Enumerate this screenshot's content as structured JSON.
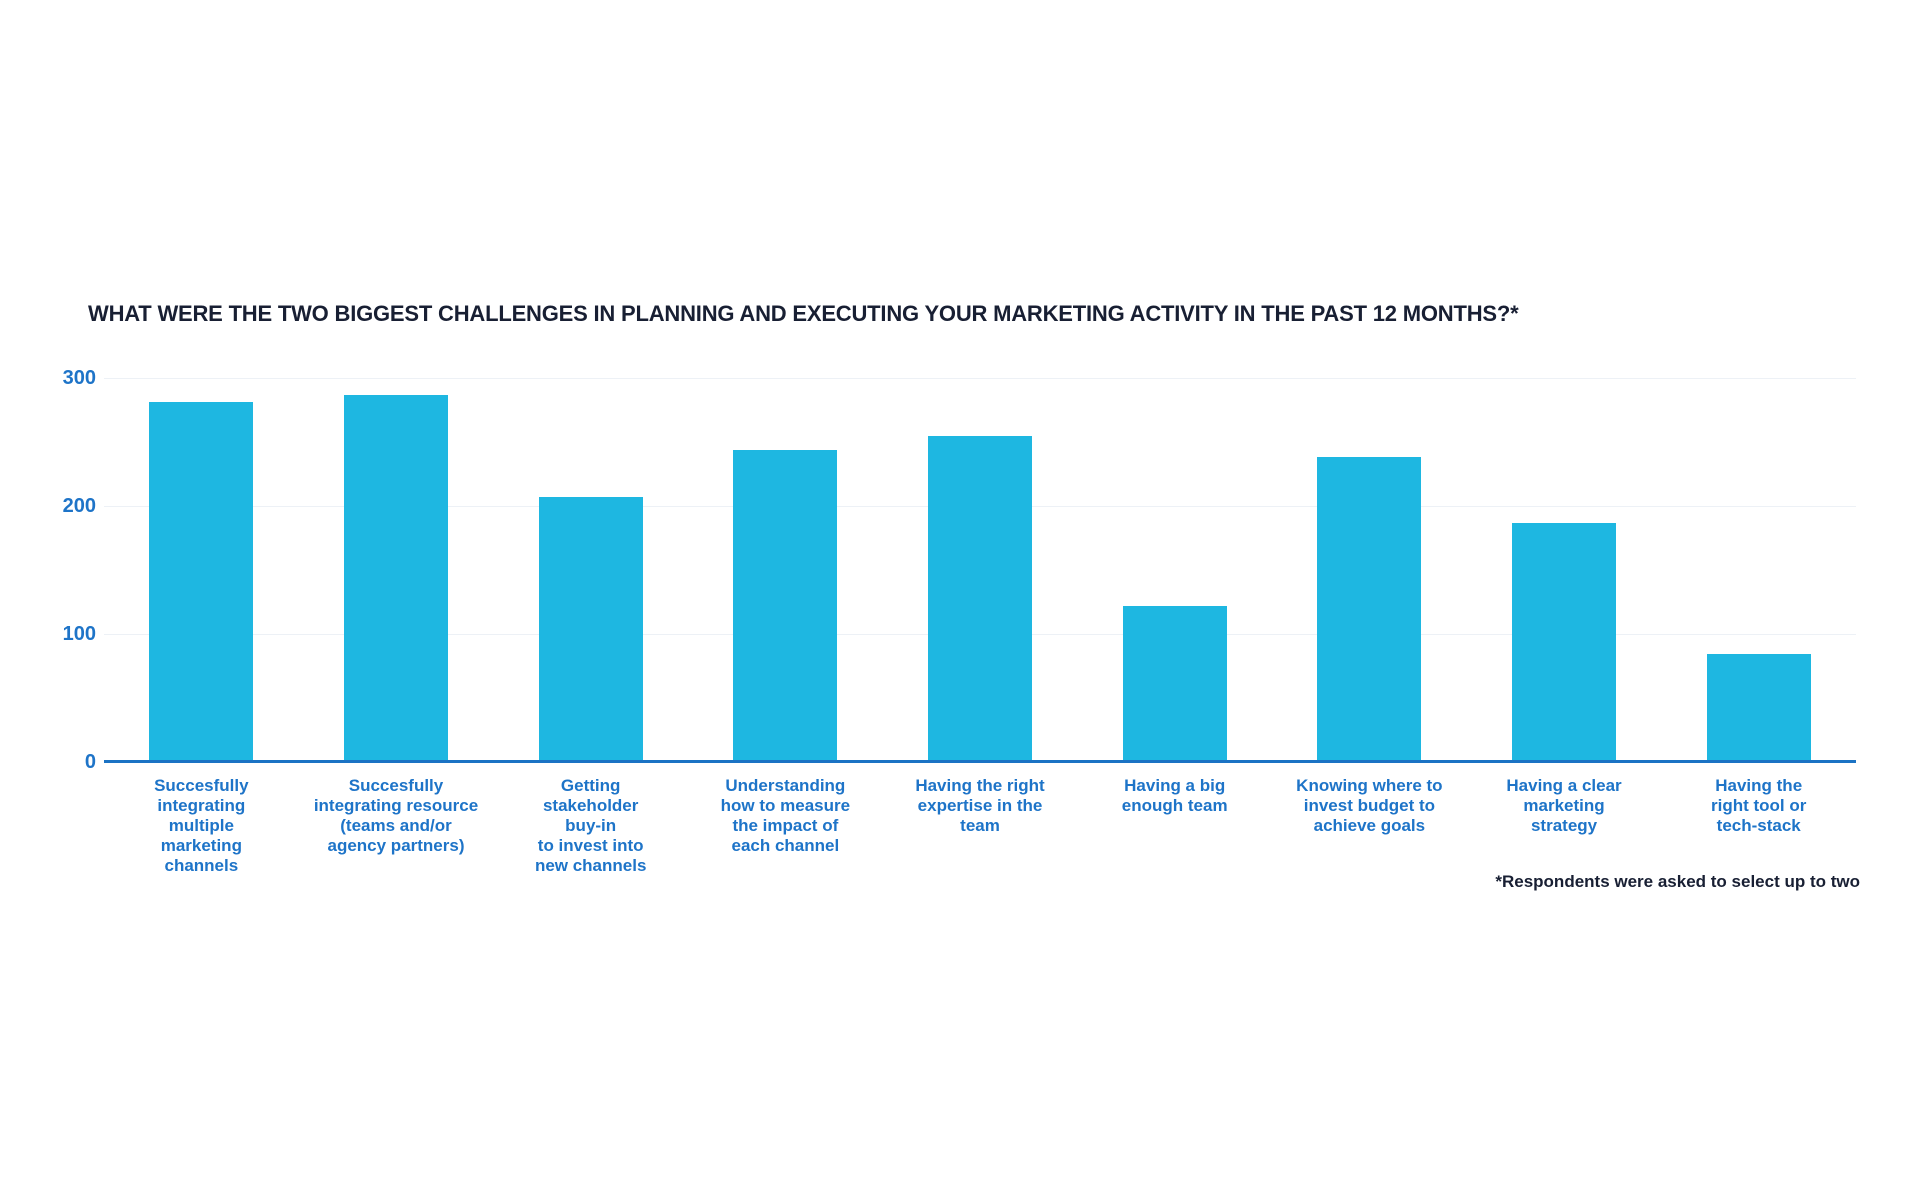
{
  "colors": {
    "background": "#ffffff",
    "bar": "#1eb7e1",
    "tick_label": "#1e74c8",
    "axis_line": "#1b73c4",
    "gridline": "#edf1f6",
    "title_text": "#181f33"
  },
  "chart_data": {
    "type": "bar",
    "title": "WHAT WERE THE TWO BIGGEST CHALLENGES IN PLANNING AND EXECUTING YOUR MARKETING ACTIVITY IN THE PAST 12 MONTHS?*",
    "annotation": "*Respondents were asked to select up to two",
    "categories": [
      "Succesfully\nintegrating\nmultiple\nmarketing\nchannels",
      "Succesfully\nintegrating resource\n(teams and/or\nagency partners)",
      "Getting\nstakeholder\nbuy-in\nto invest into\nnew channels",
      "Understanding\nhow to measure\nthe impact of\neach channel",
      "Having the right\nexpertise in the\nteam",
      "Having a big\nenough team",
      "Knowing where to\ninvest budget to\nachieve goals",
      "Having a clear\nmarketing\nstrategy",
      "Having the\nright tool or\ntech-stack"
    ],
    "values": [
      281,
      287,
      207,
      244,
      255,
      122,
      238,
      187,
      84
    ],
    "xlabel": "",
    "ylabel": "",
    "ylim": [
      0,
      300
    ],
    "yticks": [
      0,
      100,
      200,
      300
    ],
    "grid": "horizontal-only",
    "legend": false
  }
}
